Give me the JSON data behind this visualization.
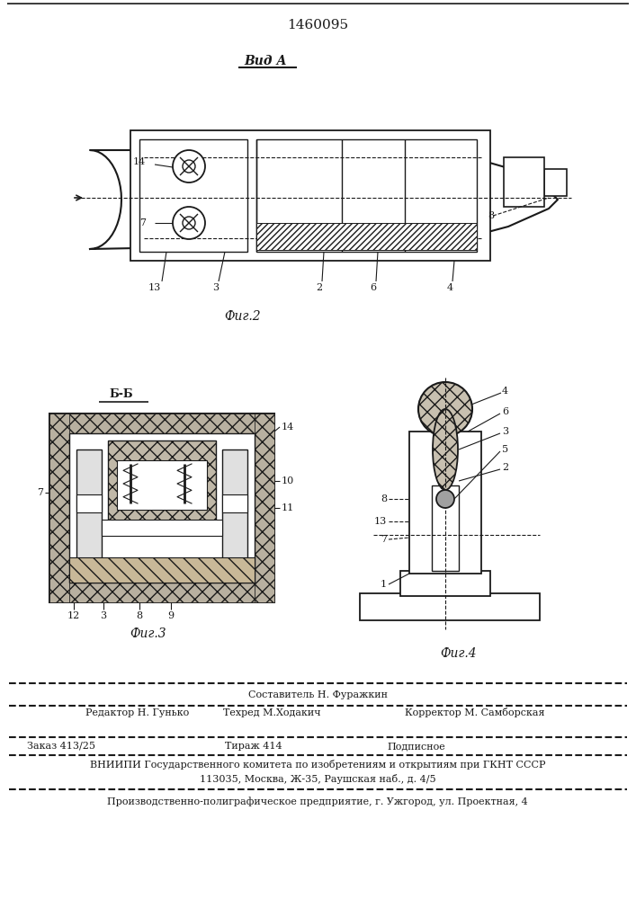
{
  "patent_number": "1460095",
  "bg_color": "#ffffff",
  "line_color": "#1a1a1a",
  "fig2_label": "Вид А",
  "fig2_caption": "Фиг.2",
  "fig3_caption": "Фиг.3",
  "fig4_caption": "Фиг.4",
  "fig3_section": "Б-Б",
  "footer_line1": "Составитель Н. Фуражкин",
  "footer_line2_left": "Редактор Н. Гунько",
  "footer_line2_mid": "Техред М.Ходакич",
  "footer_line2_right": "Корректор М. Самборская",
  "footer_line3_left": "Заказ 413/25",
  "footer_line3_mid": "Тираж 414",
  "footer_line3_right": "Подписное",
  "footer_line4": "ВНИИПИ Государственного комитета по изобретениям и открытиям при ГКНТ СССР",
  "footer_line5": "113035, Москва, Ж-35, Раушская наб., д. 4/5",
  "footer_line6": "Производственно-полиграфическое предприятие, г. Ужгород, ул. Проектная, 4",
  "hatch_color": "#888888"
}
